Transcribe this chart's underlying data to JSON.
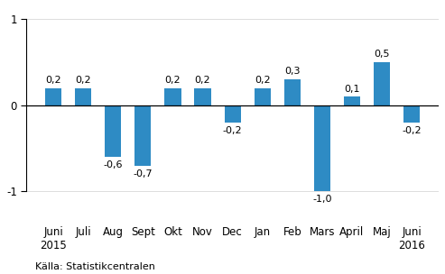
{
  "categories": [
    "Juni\n2015",
    "Juli",
    "Aug",
    "Sept",
    "Okt",
    "Nov",
    "Dec",
    "Jan",
    "Feb",
    "Mars",
    "April",
    "Maj",
    "Juni\n2016"
  ],
  "values": [
    0.2,
    0.2,
    -0.6,
    -0.7,
    0.2,
    0.2,
    -0.2,
    0.2,
    0.3,
    -1.0,
    0.1,
    0.5,
    -0.2
  ],
  "bar_color": "#2e8bc4",
  "ylim": [
    -1.35,
    1.15
  ],
  "yticks": [
    -1,
    0,
    1
  ],
  "background_color": "#ffffff",
  "source_text": "Källa: Statistikcentralen",
  "source_fontsize": 8,
  "label_fontsize": 8,
  "tick_fontsize": 8.5,
  "bar_width": 0.55
}
